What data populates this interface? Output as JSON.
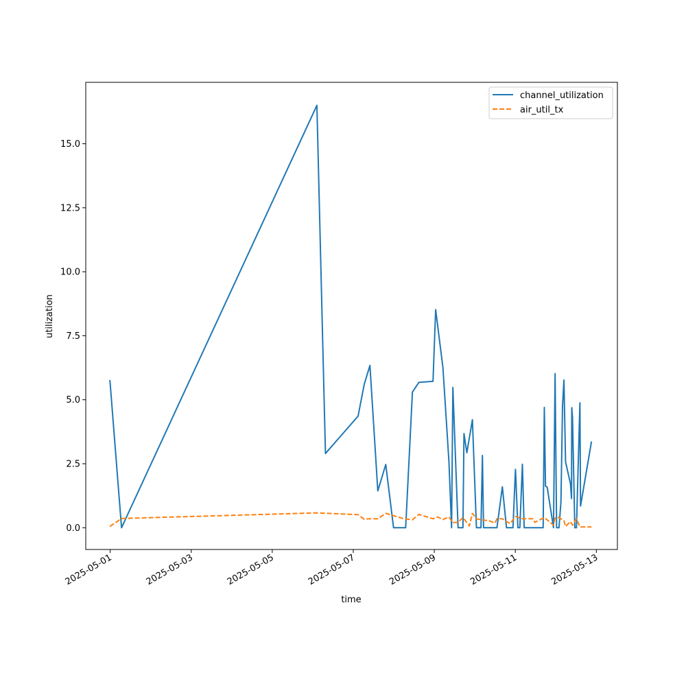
{
  "chart_data": {
    "type": "line",
    "title": "",
    "xlabel": "time",
    "ylabel": "utilization",
    "xlim": [
      "2025-04-30T09:31",
      "2025-05-13T12:28"
    ],
    "ylim": [
      -0.85,
      17.4
    ],
    "x_ticks": [
      "2025-05-01",
      "2025-05-03",
      "2025-05-05",
      "2025-05-07",
      "2025-05-09",
      "2025-05-11",
      "2025-05-13"
    ],
    "y_ticks": [
      0.0,
      2.5,
      5.0,
      7.5,
      10.0,
      12.5,
      15.0
    ],
    "y_tick_labels": [
      "0.0",
      "2.5",
      "5.0",
      "7.5",
      "10.0",
      "12.5",
      "15.0"
    ],
    "legend_position": "top-right",
    "grid": false,
    "series": [
      {
        "name": "channel_utilization",
        "color": "#1f77b4",
        "style": "solid",
        "points": [
          [
            "2025-04-30T23:49",
            5.77
          ],
          [
            "2025-05-01T06:43",
            0.0
          ],
          [
            "2025-05-06T02:27",
            16.5
          ],
          [
            "2025-05-06T07:31",
            2.9
          ],
          [
            "2025-05-07T02:51",
            4.36
          ],
          [
            "2025-05-07T06:29",
            5.6
          ],
          [
            "2025-05-07T09:52",
            6.34
          ],
          [
            "2025-05-07T14:32",
            1.44
          ],
          [
            "2025-05-07T19:14",
            2.47
          ],
          [
            "2025-05-07T23:52",
            0.0
          ],
          [
            "2025-05-08T07:02",
            0.0
          ],
          [
            "2025-05-08T11:02",
            5.3
          ],
          [
            "2025-05-08T14:53",
            5.68
          ],
          [
            "2025-05-08T23:14",
            5.72
          ],
          [
            "2025-05-09T00:48",
            8.52
          ],
          [
            "2025-05-09T05:07",
            6.25
          ],
          [
            "2025-05-09T08:41",
            2.57
          ],
          [
            "2025-05-09T10:14",
            0.0
          ],
          [
            "2025-05-09T11:00",
            5.48
          ],
          [
            "2025-05-09T14:05",
            0.0
          ],
          [
            "2025-05-09T16:58",
            0.0
          ],
          [
            "2025-05-09T17:35",
            3.68
          ],
          [
            "2025-05-09T19:17",
            2.93
          ],
          [
            "2025-05-09T22:34",
            4.22
          ],
          [
            "2025-05-10T00:58",
            0.0
          ],
          [
            "2025-05-10T03:39",
            0.0
          ],
          [
            "2025-05-10T04:30",
            2.82
          ],
          [
            "2025-05-10T05:11",
            0.0
          ],
          [
            "2025-05-10T13:07",
            0.0
          ],
          [
            "2025-05-10T16:19",
            1.6
          ],
          [
            "2025-05-10T18:46",
            0.0
          ],
          [
            "2025-05-10T22:36",
            0.0
          ],
          [
            "2025-05-11T00:05",
            2.28
          ],
          [
            "2025-05-11T01:32",
            0.0
          ],
          [
            "2025-05-11T02:41",
            0.0
          ],
          [
            "2025-05-11T04:11",
            2.48
          ],
          [
            "2025-05-11T05:14",
            0.0
          ],
          [
            "2025-05-11T16:29",
            0.0
          ],
          [
            "2025-05-11T17:11",
            4.7
          ],
          [
            "2025-05-11T17:52",
            1.63
          ],
          [
            "2025-05-11T18:53",
            1.58
          ],
          [
            "2025-05-11T22:37",
            0.0
          ],
          [
            "2025-05-11T23:33",
            6.02
          ],
          [
            "2025-05-12T00:27",
            0.0
          ],
          [
            "2025-05-12T01:52",
            0.0
          ],
          [
            "2025-05-12T03:01",
            1.0
          ],
          [
            "2025-05-12T03:58",
            4.78
          ],
          [
            "2025-05-12T04:48",
            5.77
          ],
          [
            "2025-05-12T05:45",
            2.57
          ],
          [
            "2025-05-12T08:38",
            1.73
          ],
          [
            "2025-05-12T09:17",
            1.14
          ],
          [
            "2025-05-12T09:27",
            4.69
          ],
          [
            "2025-05-12T09:52",
            4.3
          ],
          [
            "2025-05-12T11:14",
            0.0
          ],
          [
            "2025-05-12T12:13",
            0.0
          ],
          [
            "2025-05-12T14:16",
            4.88
          ],
          [
            "2025-05-12T14:38",
            0.85
          ],
          [
            "2025-05-12T21:07",
            3.37
          ]
        ]
      },
      {
        "name": "air_util_tx",
        "color": "#ff7f0e",
        "style": "dashed",
        "points": [
          [
            "2025-04-30T23:49",
            0.05
          ],
          [
            "2025-05-01T06:43",
            0.36
          ],
          [
            "2025-05-06T02:27",
            0.58
          ],
          [
            "2025-05-07T02:51",
            0.51
          ],
          [
            "2025-05-07T06:29",
            0.33
          ],
          [
            "2025-05-07T09:52",
            0.35
          ],
          [
            "2025-05-07T14:32",
            0.35
          ],
          [
            "2025-05-07T19:14",
            0.56
          ],
          [
            "2025-05-08T06:06",
            0.35
          ],
          [
            "2025-05-08T11:02",
            0.31
          ],
          [
            "2025-05-08T14:53",
            0.52
          ],
          [
            "2025-05-08T23:14",
            0.35
          ],
          [
            "2025-05-09T02:04",
            0.42
          ],
          [
            "2025-05-09T05:07",
            0.32
          ],
          [
            "2025-05-09T08:41",
            0.42
          ],
          [
            "2025-05-09T11:00",
            0.2
          ],
          [
            "2025-05-09T14:05",
            0.21
          ],
          [
            "2025-05-09T16:58",
            0.4
          ],
          [
            "2025-05-09T20:44",
            0.07
          ],
          [
            "2025-05-09T22:34",
            0.56
          ],
          [
            "2025-05-10T00:58",
            0.35
          ],
          [
            "2025-05-10T05:11",
            0.3
          ],
          [
            "2025-05-10T09:02",
            0.26
          ],
          [
            "2025-05-10T11:58",
            0.18
          ],
          [
            "2025-05-10T13:07",
            0.35
          ],
          [
            "2025-05-10T16:19",
            0.35
          ],
          [
            "2025-05-10T20:53",
            0.16
          ],
          [
            "2025-05-11T00:05",
            0.44
          ],
          [
            "2025-05-11T04:11",
            0.35
          ],
          [
            "2025-05-11T10:24",
            0.35
          ],
          [
            "2025-05-11T11:34",
            0.21
          ],
          [
            "2025-05-11T17:11",
            0.4
          ],
          [
            "2025-05-11T22:37",
            0.1
          ],
          [
            "2025-05-11T23:33",
            0.38
          ],
          [
            "2025-05-12T01:52",
            0.4
          ],
          [
            "2025-05-12T04:48",
            0.27
          ],
          [
            "2025-05-12T05:45",
            0.05
          ],
          [
            "2025-05-12T08:38",
            0.24
          ],
          [
            "2025-05-12T09:52",
            0.1
          ],
          [
            "2025-05-12T12:13",
            0.35
          ],
          [
            "2025-05-12T14:16",
            0.03
          ],
          [
            "2025-05-12T21:07",
            0.03
          ]
        ]
      }
    ]
  }
}
